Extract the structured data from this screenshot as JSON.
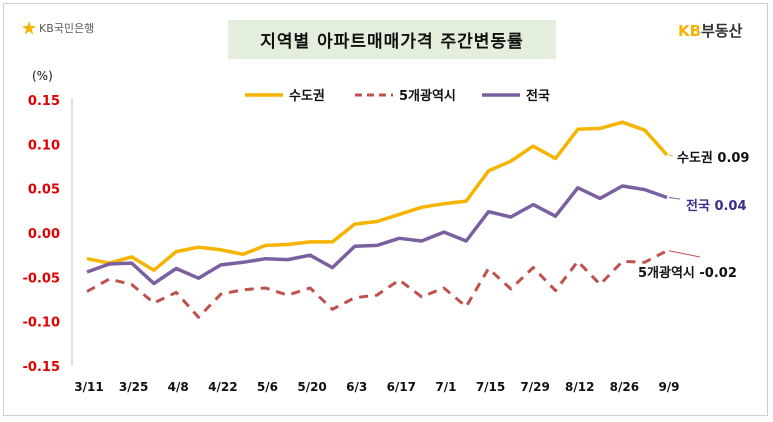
{
  "logo": {
    "text": "KB국민은행"
  },
  "brand": {
    "part1": "KB",
    "part2": "부동산"
  },
  "chart_data": {
    "type": "line",
    "title": "지역별 아파트매매가격 주간변동률",
    "ylabel": "(%)",
    "xlabel": "",
    "ylim": [
      -0.15,
      0.15
    ],
    "yticks": [
      0.15,
      0.1,
      0.05,
      0.0,
      -0.05,
      -0.1,
      -0.15
    ],
    "ytick_labels": [
      "0.15",
      "0.10",
      "0.05",
      "0.00",
      "-0.05",
      "-0.10",
      "-0.15"
    ],
    "x": [
      "3/11",
      "3/18",
      "3/25",
      "4/1",
      "4/8",
      "4/15",
      "4/22",
      "4/29",
      "5/6",
      "5/13",
      "5/20",
      "5/27",
      "6/3",
      "6/10",
      "6/17",
      "6/24",
      "7/1",
      "7/8",
      "7/15",
      "7/22",
      "7/29",
      "8/5",
      "8/12",
      "8/19",
      "8/26",
      "9/2",
      "9/9"
    ],
    "xtick_labels": [
      "3/11",
      "3/25",
      "4/8",
      "4/22",
      "5/6",
      "5/20",
      "6/3",
      "6/17",
      "7/1",
      "7/15",
      "7/29",
      "8/12",
      "8/26",
      "9/9"
    ],
    "legend_position": "top",
    "series": [
      {
        "name": "수도권",
        "color": "#f5b400",
        "style": "solid",
        "values": [
          -0.029,
          -0.034,
          -0.027,
          -0.042,
          -0.021,
          -0.016,
          -0.019,
          -0.024,
          -0.014,
          -0.013,
          -0.01,
          -0.01,
          0.01,
          0.013,
          0.021,
          0.029,
          0.033,
          0.036,
          0.07,
          0.081,
          0.098,
          0.084,
          0.117,
          0.118,
          0.125,
          0.116,
          0.088
        ],
        "end_label": "수도권 0.09"
      },
      {
        "name": "5개광역시",
        "color": "#c0504d",
        "style": "dashed",
        "values": [
          -0.066,
          -0.052,
          -0.058,
          -0.079,
          -0.067,
          -0.095,
          -0.069,
          -0.064,
          -0.062,
          -0.07,
          -0.062,
          -0.086,
          -0.073,
          -0.07,
          -0.053,
          -0.072,
          -0.062,
          -0.083,
          -0.04,
          -0.063,
          -0.039,
          -0.065,
          -0.032,
          -0.058,
          -0.032,
          -0.033,
          -0.02
        ],
        "end_label": "5개광역시 -0.02"
      },
      {
        "name": "전국",
        "color": "#7b60a0",
        "style": "solid",
        "values": [
          -0.044,
          -0.035,
          -0.034,
          -0.057,
          -0.04,
          -0.051,
          -0.036,
          -0.033,
          -0.029,
          -0.03,
          -0.025,
          -0.039,
          -0.015,
          -0.014,
          -0.006,
          -0.009,
          0.001,
          -0.009,
          0.024,
          0.018,
          0.032,
          0.019,
          0.051,
          0.039,
          0.053,
          0.049,
          0.04
        ],
        "end_label": "전국 0.04"
      }
    ]
  }
}
